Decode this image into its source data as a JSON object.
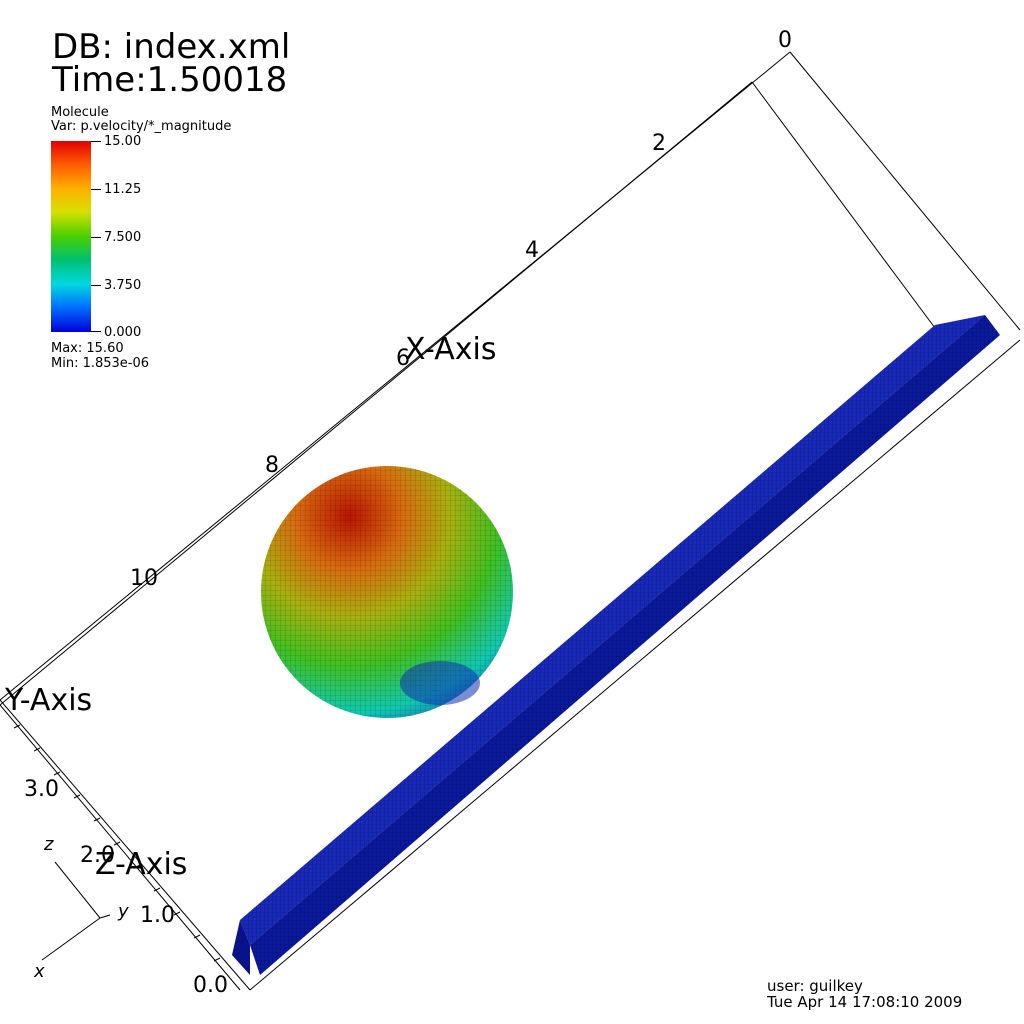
{
  "header": {
    "db": "DB: index.xml",
    "time": "Time:1.50018"
  },
  "legend": {
    "title": "Molecule",
    "variable": "Var: p.velocity/*_magnitude",
    "ticks": [
      "15.00",
      "11.25",
      "7.500",
      "3.750",
      "0.000"
    ],
    "max": "Max:  15.60",
    "min": "Min:  1.853e-06",
    "colors": [
      "#e00000",
      "#ffb000",
      "#48d000",
      "#00d8e0",
      "#0000d8"
    ]
  },
  "axes": {
    "x_title": "X-Axis",
    "y_title": "Y-Axis",
    "z_title": "Z-Axis",
    "x_ticks": [
      "0",
      "2",
      "4",
      "6",
      "8",
      "10"
    ],
    "z_ticks": [
      "3.0",
      "2.0",
      "1.0",
      "0.0"
    ]
  },
  "triad": {
    "x": "x",
    "y": "y",
    "z": "z"
  },
  "footer": {
    "user": "user: guilkey",
    "date": "Tue Apr 14 17:08:10 2009"
  },
  "scene": {
    "slab_color": "#0a1a9a",
    "slab_shadow": "#000a70",
    "sphere_top_color": "#c01800",
    "sphere_mid_color": "#40c020",
    "sphere_low_color": "#1030b0"
  }
}
